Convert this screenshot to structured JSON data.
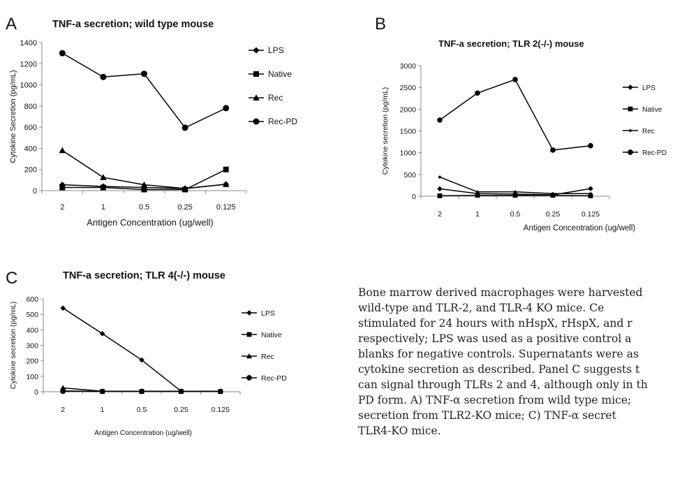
{
  "panels": [
    {
      "letter": "A",
      "title": "TNF-a secretion; wild type mouse"
    },
    {
      "letter": "B",
      "title": "TNF-a secretion; TLR 2(-/-) mouse"
    },
    {
      "letter": "C",
      "title": "TNF-a secretion; TLR 4(-/-) mouse"
    }
  ],
  "caption_lines": [
    "Bone marrow derived macrophages were harvested",
    "wild-type and TLR-2, and TLR-4 KO mice. Ce",
    "stimulated for 24 hours with nHspX, rHspX, and r",
    "respectively; LPS was used as a positive control a",
    "blanks for negative controls. Supernatants were as",
    "cytokine secretion as described. Panel C suggests t",
    "can signal through TLRs 2 and 4, although only in th",
    "PD form. A) TNF-α secretion from wild type mice;",
    "secretion from TLR2-KO mice; C) TNF-α secret",
    "TLR4-KO mice."
  ],
  "chart_data": [
    {
      "type": "line",
      "title": "TNF-a secretion; wild type mouse",
      "xlabel": "Antigen Concentration (ug/well)",
      "ylabel": "Cytokine Secretion (pg/mL)",
      "categories": [
        "2",
        "1",
        "0.5",
        "0.25",
        "0.125"
      ],
      "ylim": [
        0,
        1400
      ],
      "yticks": [
        0,
        200,
        400,
        600,
        800,
        1000,
        1200,
        1400
      ],
      "grid": false,
      "legend_position": "right",
      "series": [
        {
          "name": "LPS",
          "marker": "diamond",
          "values": [
            55,
            40,
            30,
            20,
            60
          ]
        },
        {
          "name": "Native",
          "marker": "square",
          "values": [
            30,
            30,
            10,
            10,
            200
          ]
        },
        {
          "name": "Rec",
          "marker": "triangle",
          "values": [
            380,
            125,
            55,
            20,
            60
          ]
        },
        {
          "name": "Rec-PD",
          "marker": "circle",
          "values": [
            1300,
            1075,
            1105,
            595,
            780
          ]
        }
      ]
    },
    {
      "type": "line",
      "title": "TNF-a secretion; TLR 2(-/-) mouse",
      "xlabel": "Antigen Concentration (ug/well)",
      "ylabel": "Cytokine secretion (pg/mL)",
      "categories": [
        "2",
        "1",
        "0.5",
        "0.25",
        "0.125"
      ],
      "ylim": [
        0,
        3000
      ],
      "yticks": [
        0,
        500,
        1000,
        1500,
        2000,
        2500,
        3000
      ],
      "grid": false,
      "legend_position": "right",
      "series": [
        {
          "name": "LPS",
          "marker": "diamond",
          "values": [
            170,
            60,
            50,
            30,
            175
          ]
        },
        {
          "name": "Native",
          "marker": "square",
          "values": [
            10,
            20,
            20,
            20,
            10
          ]
        },
        {
          "name": "Rec",
          "marker": "small-diamond",
          "values": [
            440,
            100,
            100,
            60,
            60
          ]
        },
        {
          "name": "Rec-PD",
          "marker": "circle",
          "values": [
            1750,
            2370,
            2680,
            1060,
            1160
          ]
        }
      ]
    },
    {
      "type": "line",
      "title": "TNF-a secretion; TLR 4(-/-) mouse",
      "xlabel": "Antigen Concentration (ug/well)",
      "ylabel": "Cytokine secretion (pg/mL)",
      "categories": [
        "2",
        "1",
        "0.5",
        "0.25",
        "0.125"
      ],
      "ylim": [
        0,
        600
      ],
      "yticks": [
        0,
        100,
        200,
        300,
        400,
        500,
        600
      ],
      "grid": false,
      "legend_position": "right",
      "series": [
        {
          "name": "LPS",
          "marker": "diamond",
          "values": [
            540,
            375,
            205,
            3,
            2
          ]
        },
        {
          "name": "Native",
          "marker": "square",
          "values": [
            5,
            2,
            2,
            2,
            2
          ]
        },
        {
          "name": "Rec",
          "marker": "triangle",
          "values": [
            25,
            3,
            3,
            3,
            2
          ]
        },
        {
          "name": "Rec-PD",
          "marker": "circle",
          "values": [
            3,
            2,
            2,
            2,
            2
          ]
        }
      ]
    }
  ]
}
